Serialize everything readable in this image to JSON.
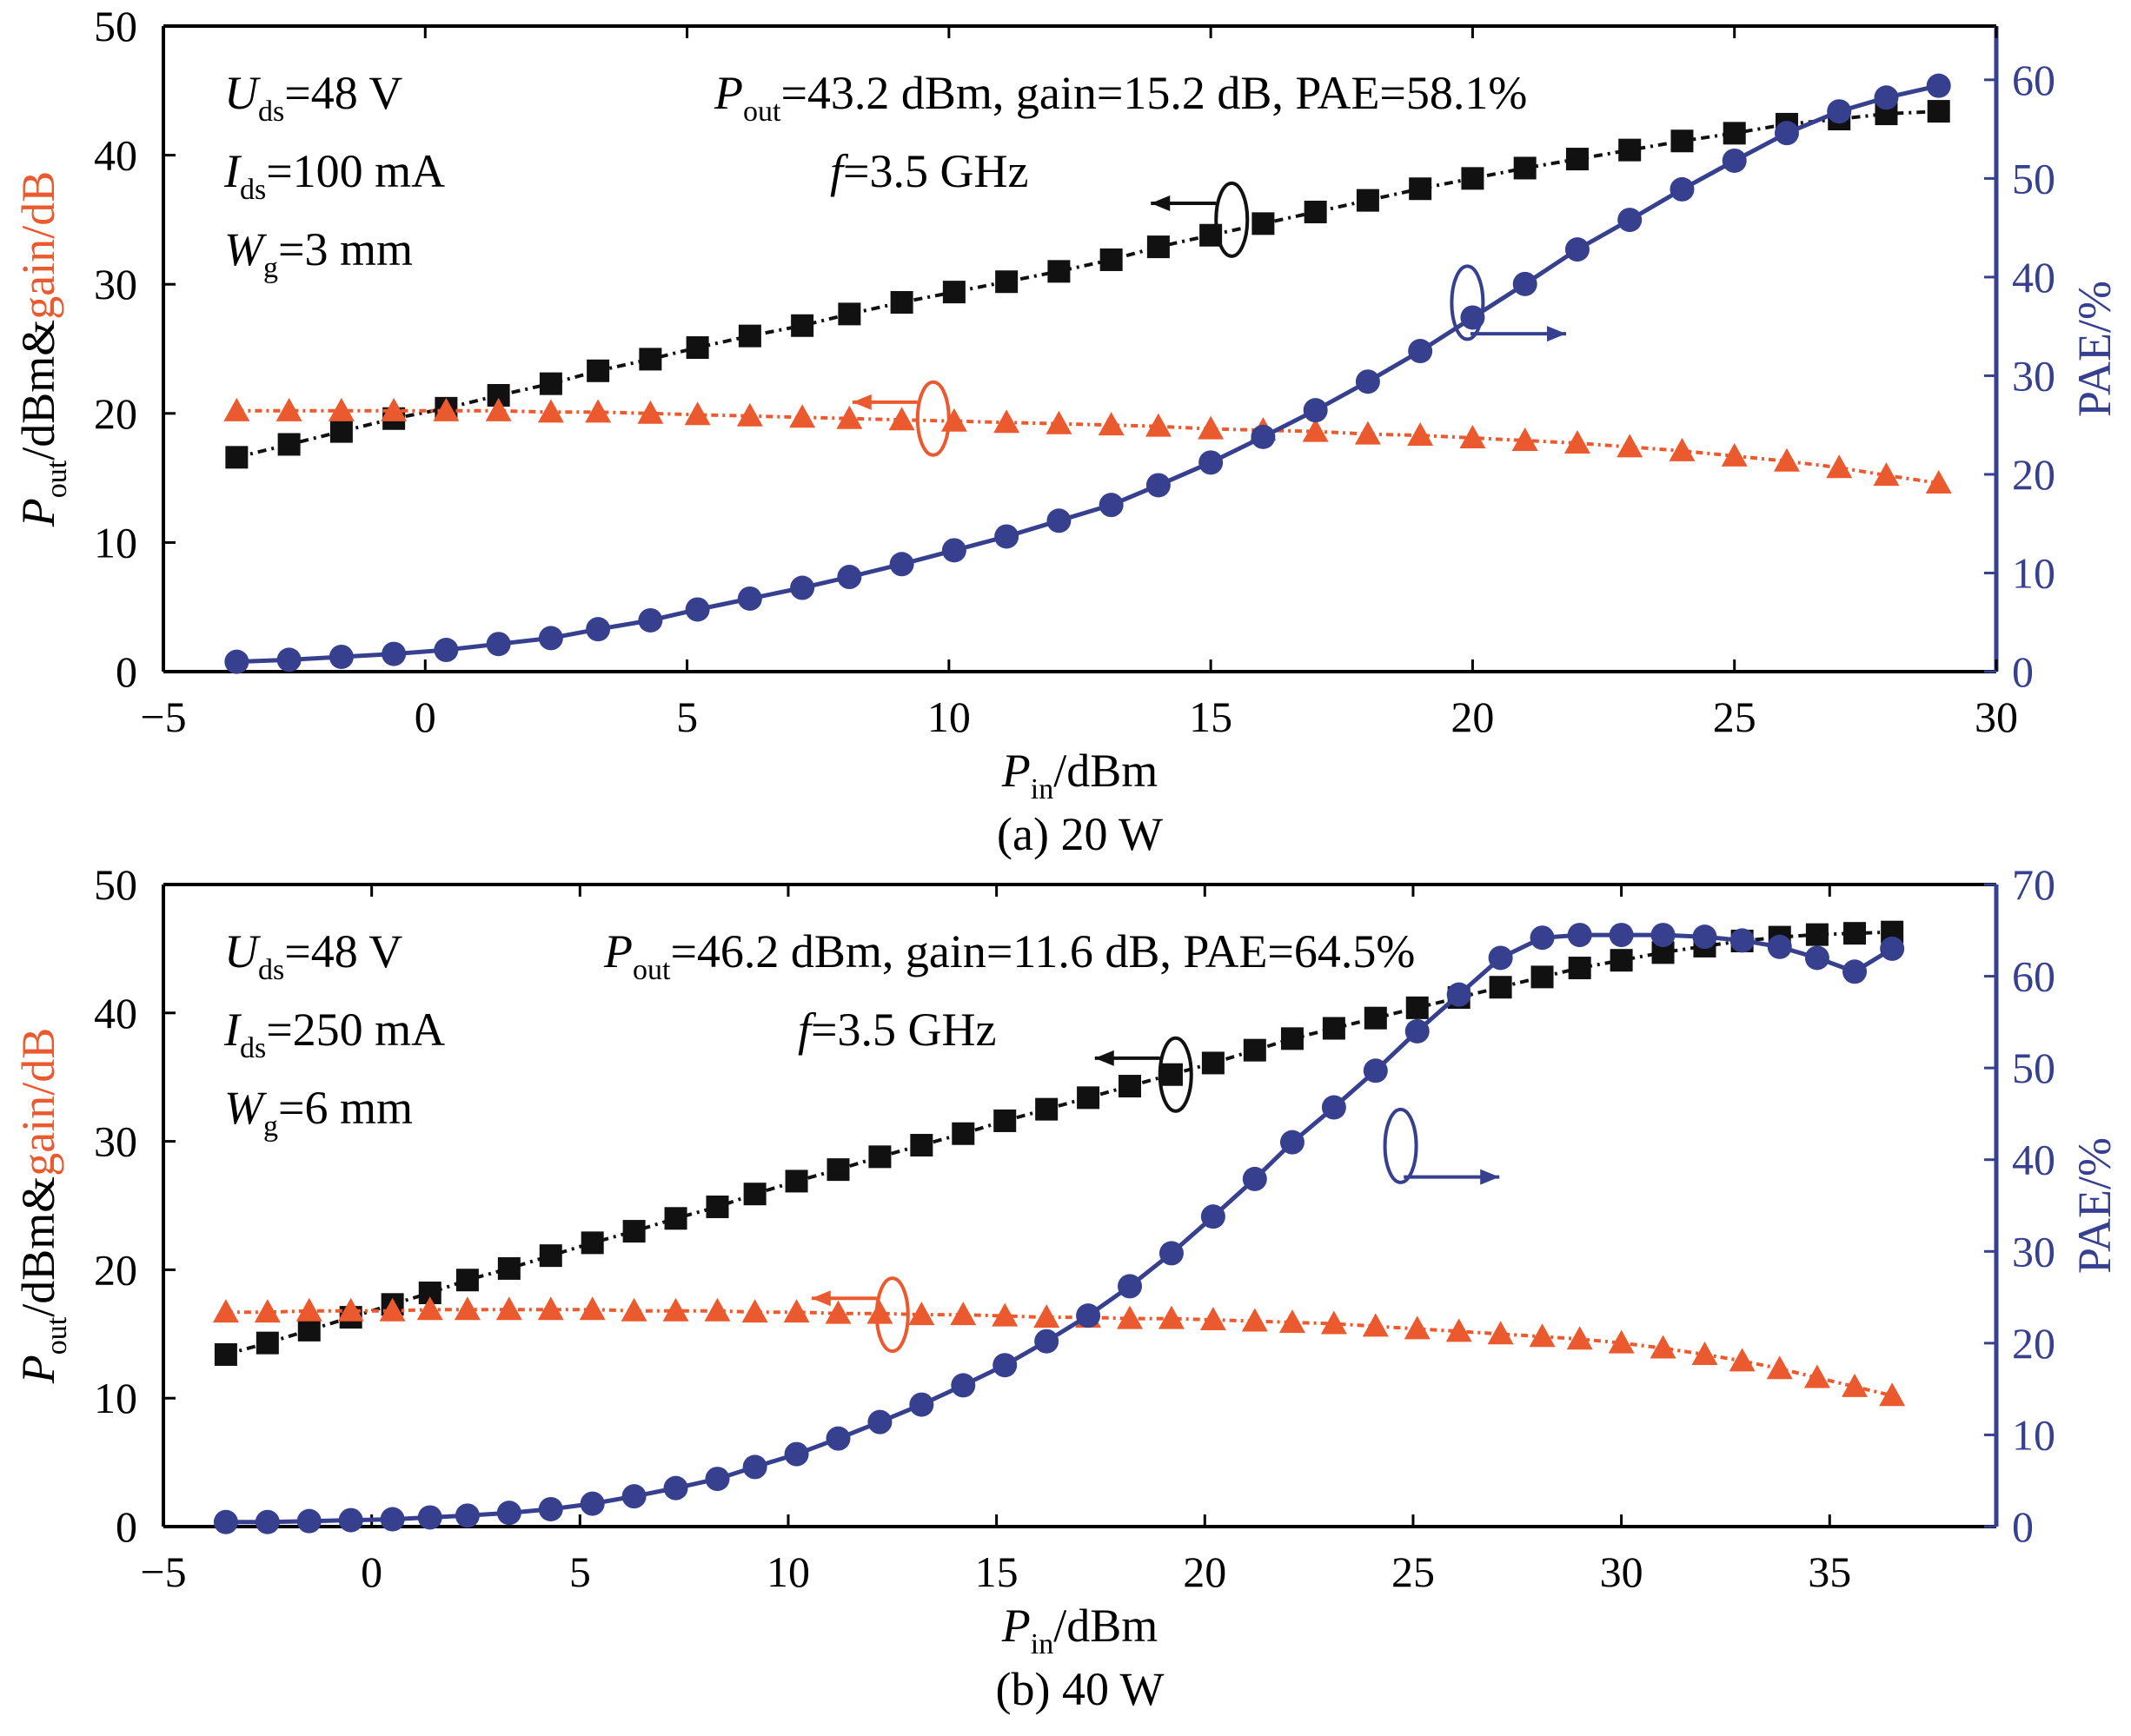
{
  "colors": {
    "pout": "#111111",
    "gain": "#EB5A2F",
    "pae": "#36408F",
    "axis": "#000000"
  },
  "chart_data": [
    {
      "type": "line",
      "caption": "(a) 20 W",
      "xlabel": {
        "main": "P",
        "sub": "in",
        "rest": "/dBm"
      },
      "ylabel_left": {
        "main": "P",
        "sub": "out",
        "rest": "/dBm&",
        "gain": "gain/dB"
      },
      "ylabel_right": "PAE/%",
      "xlim": [
        -5,
        30
      ],
      "ylim_left": [
        0,
        50
      ],
      "ylim_right": [
        0,
        65.45
      ],
      "x_ticks": [
        -5,
        0,
        5,
        10,
        15,
        20,
        25,
        30
      ],
      "x_tick_labels": [
        "−5",
        "0",
        "5",
        "10",
        "15",
        "20",
        "25",
        "30"
      ],
      "y_ticks_left": [
        0,
        10,
        20,
        30,
        40,
        50
      ],
      "y_ticks_right": [
        0,
        10,
        20,
        30,
        40,
        50,
        60
      ],
      "conditions": [
        {
          "main": "U",
          "sub": "ds",
          "rest": "=48 V"
        },
        {
          "main": "I",
          "sub": "ds",
          "rest": "=100 mA"
        },
        {
          "main": "W",
          "sub": "g",
          "rest": "=3 mm"
        }
      ],
      "summary": {
        "main": "P",
        "sub": "out",
        "rest": "=43.2 dBm, gain=15.2 dB, PAE=58.1%"
      },
      "frequency": {
        "main": "f",
        "rest": "=3.5 GHz"
      },
      "x": [
        -3.6,
        -2.6,
        -1.6,
        -0.6,
        0.4,
        1.4,
        2.4,
        3.3,
        4.3,
        5.2,
        6.2,
        7.2,
        8.1,
        9.1,
        10.1,
        11.1,
        12.1,
        13.1,
        14.0,
        15.0,
        16.0,
        17.0,
        18.0,
        19.0,
        20.0,
        21.0,
        22.0,
        23.0,
        24.0,
        25.0,
        26.0,
        27.0,
        27.9,
        28.9
      ],
      "series": [
        {
          "name": "Pout",
          "axis": "left",
          "marker": "square",
          "values": [
            16.6,
            17.6,
            18.6,
            19.6,
            20.4,
            21.4,
            22.3,
            23.3,
            24.2,
            25.1,
            26.0,
            26.8,
            27.7,
            28.6,
            29.4,
            30.2,
            31.0,
            31.9,
            32.9,
            33.8,
            34.7,
            35.6,
            36.5,
            37.4,
            38.2,
            39.0,
            39.7,
            40.4,
            41.1,
            41.7,
            42.4,
            42.8,
            43.2,
            43.4
          ]
        },
        {
          "name": "gain",
          "axis": "left",
          "marker": "triangle",
          "values": [
            20.2,
            20.2,
            20.2,
            20.2,
            20.2,
            20.2,
            20.1,
            20.1,
            20.0,
            19.9,
            19.8,
            19.7,
            19.6,
            19.5,
            19.4,
            19.3,
            19.2,
            19.1,
            19.0,
            18.8,
            18.7,
            18.6,
            18.4,
            18.3,
            18.1,
            17.9,
            17.7,
            17.4,
            17.1,
            16.7,
            16.3,
            15.8,
            15.2,
            14.6
          ]
        },
        {
          "name": "PAE",
          "axis": "right",
          "marker": "circle",
          "values": [
            1.0,
            1.2,
            1.5,
            1.8,
            2.2,
            2.8,
            3.4,
            4.3,
            5.2,
            6.3,
            7.4,
            8.5,
            9.6,
            10.9,
            12.3,
            13.7,
            15.3,
            16.9,
            18.9,
            21.2,
            23.8,
            26.5,
            29.4,
            32.5,
            35.9,
            39.3,
            42.8,
            45.8,
            48.9,
            51.8,
            54.6,
            56.8,
            58.2,
            59.4
          ]
        }
      ]
    },
    {
      "type": "line",
      "caption": "(b) 40 W",
      "xlabel": {
        "main": "P",
        "sub": "in",
        "rest": "/dBm"
      },
      "ylabel_left": {
        "main": "P",
        "sub": "out",
        "rest": "/dBm&",
        "gain": "gain/dB"
      },
      "ylabel_right": "PAE/%",
      "xlim": [
        -5,
        39
      ],
      "ylim_left": [
        0,
        50
      ],
      "ylim_right": [
        0,
        70
      ],
      "x_ticks": [
        -5,
        0,
        5,
        10,
        15,
        20,
        25,
        30,
        35
      ],
      "x_tick_labels": [
        "−5",
        "0",
        "5",
        "10",
        "15",
        "20",
        "25",
        "30",
        "35"
      ],
      "y_ticks_left": [
        0,
        10,
        20,
        30,
        40,
        50
      ],
      "y_ticks_right": [
        0,
        10,
        20,
        30,
        40,
        50,
        60,
        70
      ],
      "conditions": [
        {
          "main": "U",
          "sub": "ds",
          "rest": "=48 V"
        },
        {
          "main": "I",
          "sub": "ds",
          "rest": "=250 mA"
        },
        {
          "main": "W",
          "sub": "g",
          "rest": "=6 mm"
        }
      ],
      "summary": {
        "main": "P",
        "sub": "out",
        "rest": "=46.2 dBm, gain=11.6 dB, PAE=64.5%"
      },
      "frequency": {
        "main": "f",
        "rest": "=3.5 GHz"
      },
      "x": [
        -3.5,
        -2.5,
        -1.5,
        -0.5,
        0.5,
        1.4,
        2.3,
        3.3,
        4.3,
        5.3,
        6.3,
        7.3,
        8.3,
        9.2,
        10.2,
        11.2,
        12.2,
        13.2,
        14.2,
        15.2,
        16.2,
        17.2,
        18.2,
        19.2,
        20.2,
        21.2,
        22.1,
        23.1,
        24.1,
        25.1,
        26.1,
        27.1,
        28.1,
        29.0,
        30.0,
        31.0,
        32.0,
        32.9,
        33.8,
        34.7,
        35.6,
        36.5
      ],
      "series": [
        {
          "name": "Pout",
          "axis": "left",
          "marker": "square",
          "values": [
            13.4,
            14.3,
            15.3,
            16.3,
            17.3,
            18.2,
            19.2,
            20.1,
            21.1,
            22.1,
            23.0,
            24.0,
            24.9,
            25.9,
            26.9,
            27.8,
            28.8,
            29.7,
            30.6,
            31.6,
            32.5,
            33.4,
            34.3,
            35.2,
            36.1,
            37.1,
            38.0,
            38.8,
            39.6,
            40.4,
            41.2,
            42.0,
            42.8,
            43.5,
            44.1,
            44.7,
            45.2,
            45.6,
            45.9,
            46.1,
            46.2,
            46.3
          ]
        },
        {
          "name": "gain",
          "axis": "left",
          "marker": "triangle",
          "values": [
            16.7,
            16.7,
            16.8,
            16.8,
            16.8,
            16.9,
            16.9,
            16.9,
            16.9,
            16.9,
            16.8,
            16.8,
            16.8,
            16.7,
            16.7,
            16.6,
            16.6,
            16.5,
            16.5,
            16.4,
            16.3,
            16.3,
            16.2,
            16.2,
            16.1,
            16.0,
            15.9,
            15.8,
            15.6,
            15.4,
            15.2,
            15.0,
            14.8,
            14.6,
            14.3,
            13.9,
            13.4,
            12.9,
            12.3,
            11.6,
            10.9,
            10.2
          ]
        },
        {
          "name": "PAE",
          "axis": "right",
          "marker": "circle",
          "values": [
            0.5,
            0.5,
            0.6,
            0.7,
            0.8,
            1.0,
            1.2,
            1.5,
            1.9,
            2.5,
            3.3,
            4.2,
            5.2,
            6.5,
            7.9,
            9.6,
            11.4,
            13.3,
            15.4,
            17.6,
            20.2,
            23.0,
            26.2,
            29.8,
            33.8,
            37.9,
            41.9,
            45.7,
            49.7,
            54.0,
            58.0,
            62.0,
            64.2,
            64.5,
            64.5,
            64.5,
            64.3,
            63.9,
            63.2,
            62.0,
            60.5,
            63.0
          ]
        }
      ]
    }
  ]
}
